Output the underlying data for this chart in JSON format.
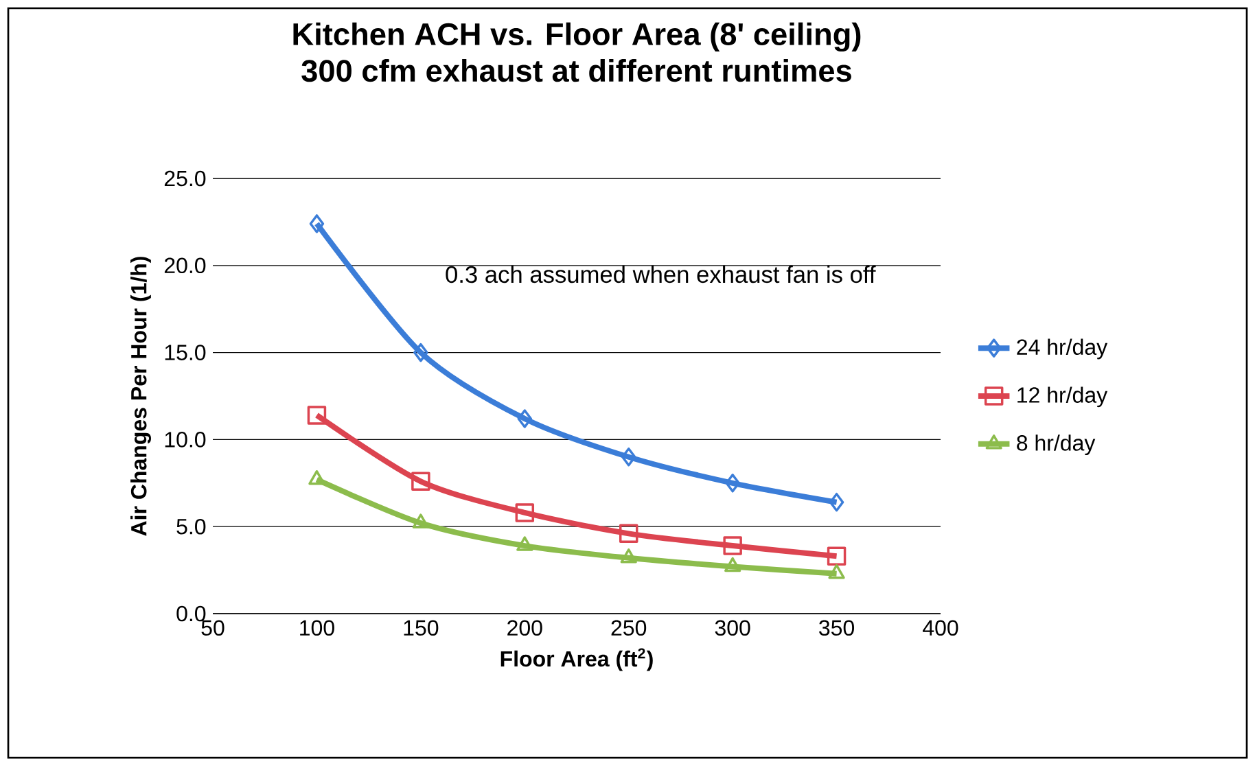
{
  "chart_data": {
    "type": "line",
    "title": "Kitchen ACH vs. Floor Area (8' ceiling)",
    "subtitle": "300 cfm exhaust at different runtimes",
    "xlabel": "Floor Area (ft$^{2}$)",
    "ylabel": "Air Changes Per Hour (1/h)",
    "x": [
      100,
      150,
      200,
      250,
      300,
      350
    ],
    "series": [
      {
        "name": "24 hr/day",
        "color": "#3b7dd8",
        "marker": "diamond",
        "values": [
          22.4,
          15.0,
          11.2,
          9.0,
          7.5,
          6.4
        ]
      },
      {
        "name": "12 hr/day",
        "color": "#dc4450",
        "marker": "square",
        "values": [
          11.4,
          7.6,
          5.8,
          4.6,
          3.9,
          3.3
        ]
      },
      {
        "name": "8 hr/day",
        "color": "#8cbc4c",
        "marker": "triangle",
        "values": [
          7.7,
          5.2,
          3.9,
          3.2,
          2.7,
          2.3
        ]
      }
    ],
    "xlim": [
      50,
      400
    ],
    "xticks": [
      50,
      100,
      150,
      200,
      250,
      300,
      350,
      400
    ],
    "ylim": [
      0,
      25
    ],
    "yticks": [
      {
        "value": 0,
        "label": "0.0"
      },
      {
        "value": 5,
        "label": "5.0"
      },
      {
        "value": 10,
        "label": "10.0"
      },
      {
        "value": 15,
        "label": "15.0"
      },
      {
        "value": 20,
        "label": "20.0"
      },
      {
        "value": 25,
        "label": "25.0"
      }
    ],
    "grid": "y",
    "legend": "right",
    "annotations": [
      "0.3 ach assumed when exhaust fan is off"
    ]
  }
}
